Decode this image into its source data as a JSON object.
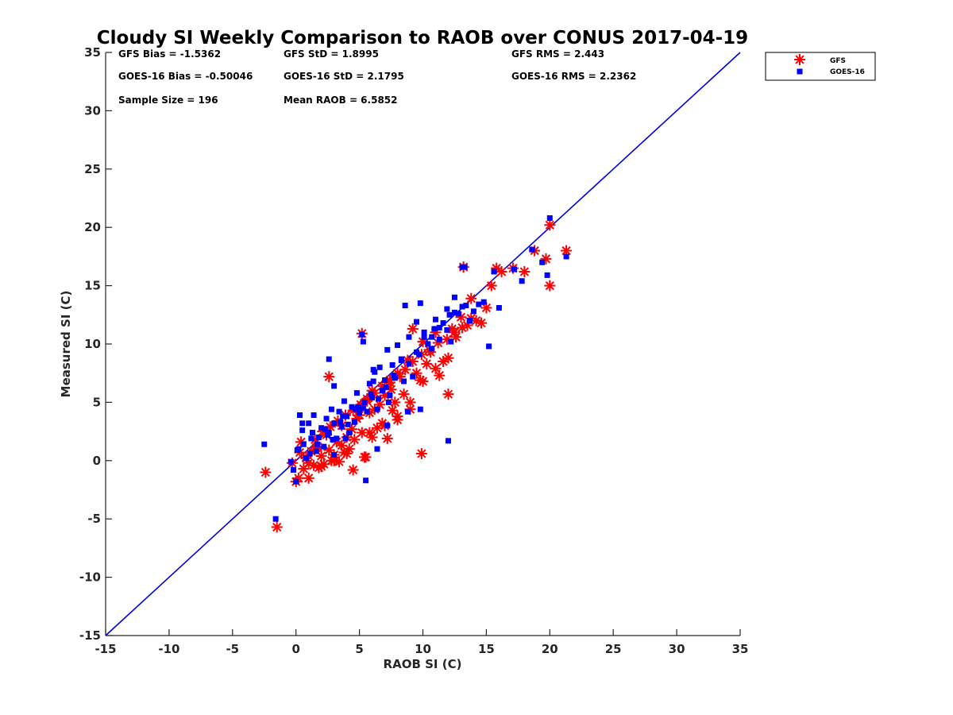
{
  "chart_data": {
    "type": "scatter",
    "title": "Cloudy SI Weekly Comparison to RAOB over CONUS 2017-04-19",
    "xlabel": "RAOB SI (C)",
    "ylabel": "Measured SI (C)",
    "xlim": [
      -15,
      35
    ],
    "ylim": [
      -15,
      35
    ],
    "xticks": [
      "-15",
      "-10",
      "-5",
      "0",
      "5",
      "10",
      "15",
      "20",
      "25",
      "30",
      "35"
    ],
    "yticks": [
      "-15",
      "-10",
      "-5",
      "0",
      "5",
      "10",
      "15",
      "20",
      "25",
      "30",
      "35"
    ],
    "reference_line": {
      "x": [
        -15,
        35
      ],
      "y": [
        -15,
        35
      ],
      "color": "#0000dd"
    },
    "legend_position": "top-right",
    "stats": [
      "GFS Bias = -1.5362",
      "GFS StD = 1.8995",
      "GFS RMS = 2.443",
      "GOES-16 Bias = -0.50046",
      "GOES-16 StD = 2.1795",
      "GOES-16 RMS = 2.2362",
      "Sample Size = 196",
      "Mean RAOB = 6.5852"
    ],
    "series": [
      {
        "name": "GFS",
        "marker": "asterisk",
        "color": "#ff0000",
        "x": [
          -2.4,
          -1.5,
          -0.3,
          0.0,
          0.2,
          0.4,
          0.6,
          0.8,
          1.0,
          1.2,
          1.4,
          1.6,
          1.8,
          2.0,
          2.2,
          2.4,
          2.6,
          2.8,
          3.0,
          3.2,
          3.4,
          3.6,
          3.8,
          4.0,
          4.2,
          4.4,
          4.6,
          4.8,
          5.0,
          5.2,
          5.4,
          5.6,
          5.8,
          6.0,
          6.2,
          6.4,
          6.6,
          6.8,
          7.0,
          7.2,
          7.4,
          7.6,
          7.8,
          8.0,
          8.2,
          8.5,
          8.8,
          9.0,
          9.2,
          9.5,
          9.8,
          10.0,
          10.3,
          10.6,
          11.0,
          11.3,
          11.6,
          12.0,
          12.3,
          12.6,
          13.0,
          13.2,
          13.5,
          13.8,
          14.2,
          14.6,
          15.0,
          15.4,
          15.8,
          16.2,
          17.1,
          18.0,
          18.8,
          19.7,
          20.0,
          20.0,
          21.3,
          0.3,
          0.8,
          1.5,
          2.1,
          2.7,
          3.3,
          3.9,
          4.5,
          5.1,
          5.6,
          6.2,
          6.8,
          7.4,
          8.0,
          8.6,
          9.2,
          9.9,
          10.5,
          11.2,
          11.9,
          12.5,
          13.1,
          13.8,
          2.6,
          5.2,
          4.5,
          5.5,
          9.9,
          12.0,
          1.0,
          2.0,
          3.0,
          4.0,
          6.0,
          7.0,
          8.0,
          9.0,
          10.0,
          11.0,
          1.7,
          3.6,
          5.8,
          7.5
        ],
        "y": [
          -1.0,
          -5.7,
          -0.2,
          -1.8,
          -1.5,
          1.6,
          -0.7,
          0.2,
          -1.5,
          0.8,
          -0.4,
          1.1,
          -0.6,
          0.4,
          -0.3,
          2.2,
          0.9,
          0.0,
          0.5,
          1.6,
          -0.1,
          1.3,
          0.7,
          2.0,
          1.0,
          2.7,
          1.8,
          3.6,
          3.9,
          2.4,
          0.3,
          5.1,
          2.4,
          6.0,
          4.4,
          2.8,
          4.8,
          3.2,
          5.6,
          1.9,
          6.7,
          4.3,
          5.0,
          3.5,
          7.2,
          5.7,
          8.6,
          4.4,
          11.3,
          7.5,
          6.9,
          10.2,
          8.3,
          9.3,
          11.0,
          7.3,
          8.5,
          5.7,
          11.3,
          10.6,
          12.3,
          16.6,
          11.6,
          13.9,
          12.0,
          11.8,
          13.1,
          15.0,
          16.5,
          16.2,
          16.5,
          16.2,
          18.0,
          17.3,
          15.0,
          20.2,
          18.0,
          0.7,
          0.3,
          1.8,
          2.5,
          2.9,
          3.4,
          3.9,
          4.3,
          4.8,
          5.3,
          5.8,
          6.4,
          6.9,
          7.5,
          7.8,
          8.5,
          9.1,
          9.5,
          10.1,
          10.4,
          11.0,
          11.4,
          12.2,
          7.2,
          10.9,
          -0.8,
          0.3,
          0.6,
          8.8,
          -0.2,
          -0.5,
          0.0,
          0.6,
          2.0,
          3.0,
          3.8,
          5.0,
          6.8,
          7.9,
          1.2,
          3.0,
          4.1,
          6.1
        ]
      },
      {
        "name": "GOES-16",
        "marker": "square",
        "color": "#0000ff",
        "x": [
          -2.5,
          -1.6,
          -0.4,
          -0.2,
          0.0,
          0.1,
          0.3,
          0.5,
          0.6,
          0.8,
          1.0,
          1.2,
          1.4,
          1.6,
          1.8,
          2.0,
          2.2,
          2.4,
          2.6,
          2.8,
          3.0,
          3.2,
          3.4,
          3.6,
          3.8,
          4.0,
          4.2,
          4.4,
          4.6,
          4.8,
          5.0,
          5.2,
          5.4,
          5.6,
          5.8,
          6.0,
          6.2,
          6.4,
          6.6,
          6.8,
          7.0,
          7.2,
          7.4,
          7.6,
          7.8,
          8.0,
          8.3,
          8.6,
          8.9,
          9.2,
          9.5,
          9.8,
          10.1,
          10.4,
          10.7,
          11.0,
          11.3,
          11.6,
          11.9,
          12.2,
          12.5,
          12.8,
          13.1,
          13.4,
          13.7,
          14.0,
          14.4,
          14.8,
          15.2,
          15.6,
          16.0,
          17.2,
          17.8,
          18.6,
          19.4,
          19.8,
          20.0,
          21.3,
          2.6,
          3.0,
          5.3,
          5.5,
          6.1,
          7.2,
          8.8,
          9.8,
          12.0,
          13.3,
          0.5,
          1.1,
          1.7,
          2.3,
          2.9,
          3.5,
          4.1,
          4.7,
          5.3,
          5.9,
          6.5,
          7.1,
          7.7,
          8.3,
          8.9,
          9.5,
          10.1,
          10.7,
          11.3,
          11.9,
          12.5,
          13.1,
          0.2,
          1.3,
          2.5,
          3.7,
          4.9,
          6.1,
          7.3,
          8.5,
          9.7,
          10.9,
          12.1,
          3.0,
          3.9,
          6.4
        ],
        "y": [
          1.4,
          -5.0,
          -0.1,
          -0.8,
          -1.8,
          0.9,
          3.9,
          2.6,
          1.4,
          0.2,
          3.2,
          1.9,
          3.9,
          0.8,
          2.0,
          2.8,
          1.2,
          3.6,
          2.4,
          4.4,
          3.2,
          1.9,
          4.2,
          2.9,
          5.1,
          3.8,
          2.4,
          4.6,
          3.3,
          5.8,
          4.1,
          10.8,
          5.0,
          4.2,
          6.6,
          5.4,
          7.6,
          4.4,
          8.0,
          6.0,
          6.9,
          9.5,
          5.6,
          8.2,
          7.1,
          9.9,
          8.7,
          13.3,
          10.6,
          7.2,
          11.9,
          13.5,
          11.0,
          10.0,
          9.6,
          12.1,
          10.4,
          11.8,
          13.0,
          10.2,
          14.0,
          12.6,
          16.6,
          13.3,
          12.0,
          12.8,
          13.4,
          13.6,
          9.8,
          16.2,
          13.1,
          16.4,
          15.4,
          18.1,
          17.0,
          15.9,
          20.8,
          17.5,
          8.7,
          6.4,
          10.2,
          -1.7,
          7.8,
          3.0,
          4.2,
          4.4,
          1.7,
          16.6,
          3.2,
          0.6,
          1.4,
          2.7,
          1.8,
          3.3,
          3.1,
          4.4,
          4.5,
          5.7,
          5.3,
          6.3,
          7.3,
          8.6,
          8.3,
          9.3,
          10.6,
          10.6,
          11.4,
          11.2,
          12.7,
          13.2,
          1.0,
          2.4,
          2.2,
          3.8,
          4.6,
          6.8,
          5.0,
          6.8,
          9.1,
          11.3,
          12.5,
          0.5,
          1.9,
          1.0
        ]
      }
    ]
  },
  "legend": {
    "entries": [
      "GFS",
      "GOES-16"
    ]
  }
}
